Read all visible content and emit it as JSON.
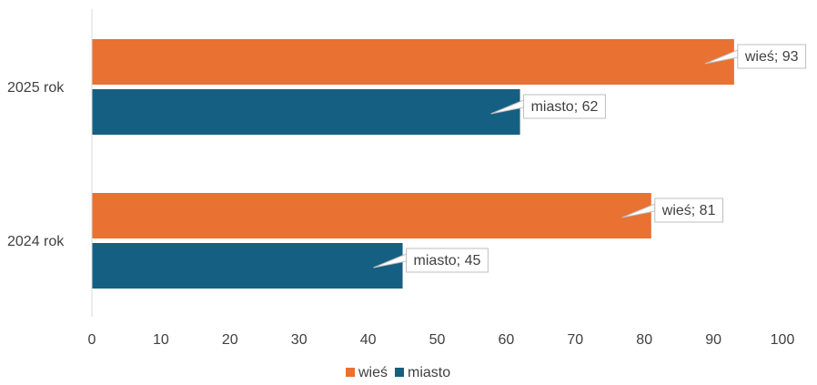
{
  "chart_data": {
    "type": "bar",
    "orientation": "horizontal",
    "categories": [
      "2025 rok",
      "2024 rok"
    ],
    "series": [
      {
        "name": "wieś",
        "color": "#E97132",
        "values": [
          93,
          81
        ],
        "labels": [
          "wieś; 93",
          "wieś; 81"
        ]
      },
      {
        "name": "miasto",
        "color": "#156082",
        "values": [
          62,
          45
        ],
        "labels": [
          "miasto; 62",
          "miasto; 45"
        ]
      }
    ],
    "xlim": [
      0,
      100
    ],
    "xticks": [
      "0",
      "10",
      "20",
      "30",
      "40",
      "50",
      "60",
      "70",
      "80",
      "90",
      "100"
    ],
    "grid": false,
    "legend": "bottom",
    "title": "",
    "xlabel": "",
    "ylabel": ""
  }
}
